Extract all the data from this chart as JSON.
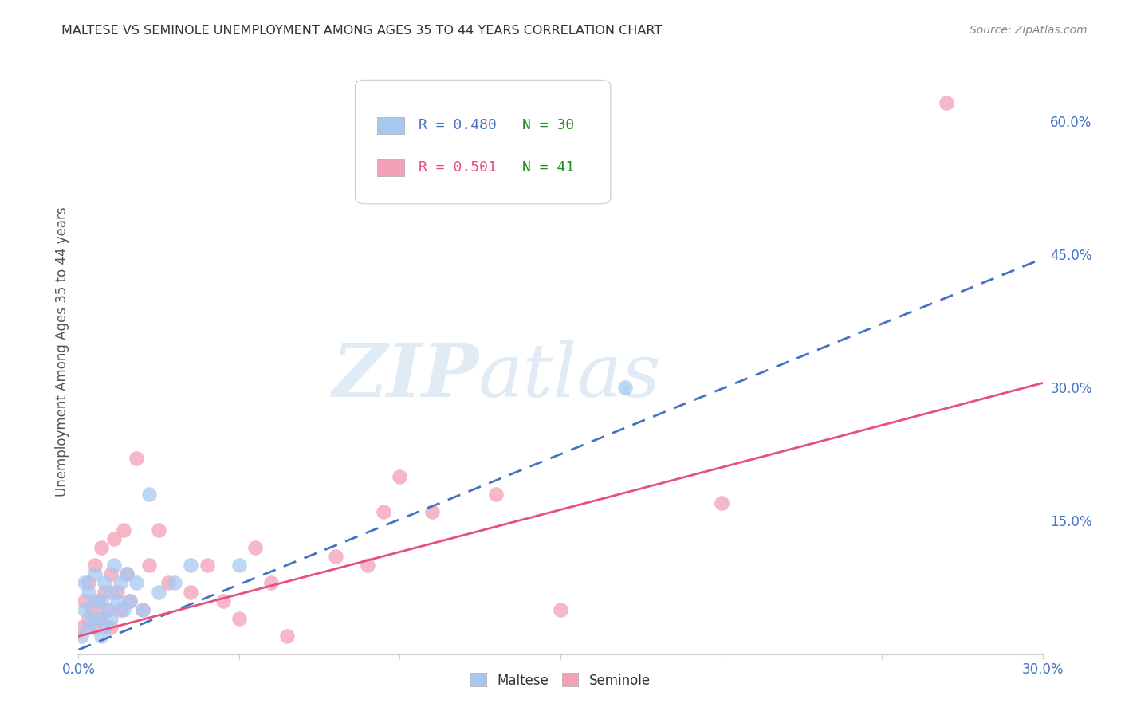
{
  "title": "MALTESE VS SEMINOLE UNEMPLOYMENT AMONG AGES 35 TO 44 YEARS CORRELATION CHART",
  "source": "Source: ZipAtlas.com",
  "ylabel": "Unemployment Among Ages 35 to 44 years",
  "xlim": [
    0.0,
    0.3
  ],
  "ylim": [
    0.0,
    0.68
  ],
  "right_yticks": [
    0.15,
    0.3,
    0.45,
    0.6
  ],
  "right_yticklabels": [
    "15.0%",
    "30.0%",
    "45.0%",
    "60.0%"
  ],
  "maltese_color": "#A8C8F0",
  "seminole_color": "#F4A0B8",
  "maltese_line_color": "#4472C4",
  "seminole_line_color": "#E8507A",
  "legend_r_maltese": "0.480",
  "legend_n_maltese": "30",
  "legend_r_seminole": "0.501",
  "legend_n_seminole": "41",
  "watermark_zip": "ZIP",
  "watermark_atlas": "atlas",
  "background_color": "#FFFFFF",
  "grid_color": "#DDDDDD",
  "maltese_x": [
    0.001,
    0.002,
    0.002,
    0.003,
    0.003,
    0.004,
    0.005,
    0.005,
    0.006,
    0.007,
    0.007,
    0.008,
    0.008,
    0.009,
    0.01,
    0.01,
    0.011,
    0.012,
    0.013,
    0.014,
    0.015,
    0.016,
    0.018,
    0.02,
    0.022,
    0.025,
    0.03,
    0.035,
    0.05,
    0.17
  ],
  "maltese_y": [
    0.02,
    0.05,
    0.08,
    0.03,
    0.07,
    0.04,
    0.06,
    0.09,
    0.04,
    0.02,
    0.06,
    0.03,
    0.08,
    0.05,
    0.04,
    0.07,
    0.1,
    0.06,
    0.08,
    0.05,
    0.09,
    0.06,
    0.08,
    0.05,
    0.18,
    0.07,
    0.08,
    0.1,
    0.1,
    0.3
  ],
  "seminole_x": [
    0.001,
    0.002,
    0.003,
    0.003,
    0.004,
    0.005,
    0.005,
    0.006,
    0.007,
    0.007,
    0.008,
    0.009,
    0.01,
    0.01,
    0.011,
    0.012,
    0.013,
    0.014,
    0.015,
    0.016,
    0.018,
    0.02,
    0.022,
    0.025,
    0.028,
    0.035,
    0.04,
    0.045,
    0.05,
    0.055,
    0.06,
    0.065,
    0.08,
    0.09,
    0.095,
    0.1,
    0.11,
    0.13,
    0.15,
    0.2,
    0.27
  ],
  "seminole_y": [
    0.03,
    0.06,
    0.04,
    0.08,
    0.05,
    0.03,
    0.1,
    0.06,
    0.04,
    0.12,
    0.07,
    0.05,
    0.03,
    0.09,
    0.13,
    0.07,
    0.05,
    0.14,
    0.09,
    0.06,
    0.22,
    0.05,
    0.1,
    0.14,
    0.08,
    0.07,
    0.1,
    0.06,
    0.04,
    0.12,
    0.08,
    0.02,
    0.11,
    0.1,
    0.16,
    0.2,
    0.16,
    0.18,
    0.05,
    0.17,
    0.62
  ],
  "maltese_line_x0": 0.0,
  "maltese_line_y0": 0.005,
  "maltese_line_x1": 0.3,
  "maltese_line_y1": 0.445,
  "seminole_line_x0": 0.0,
  "seminole_line_y0": 0.02,
  "seminole_line_x1": 0.3,
  "seminole_line_y1": 0.305
}
